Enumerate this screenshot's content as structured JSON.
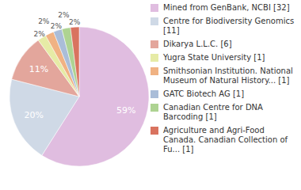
{
  "chart_data": {
    "type": "pie",
    "categories": [
      "Mined from GenBank, NCBI [32]",
      "Centre for Biodiversity Genomics [11]",
      "Dikarya L.L.C. [6]",
      "Yugra State University [1]",
      "Smithsonian Institution. National Museum of Natural History... [1]",
      "GATC Biotech AG [1]",
      "Canadian Centre for DNA Barcoding [1]",
      "Agriculture and Agri-Food Canada. Canadian Collection of Fu... [1]"
    ],
    "values": [
      59,
      20,
      11,
      2,
      2,
      2,
      2,
      2
    ],
    "value_labels": [
      "59%",
      "20%",
      "11%",
      "2%",
      "2%",
      "2%",
      "2%",
      "2%"
    ],
    "colors": [
      "#e0bde0",
      "#cfd9e6",
      "#e3a69c",
      "#e6eba6",
      "#f0b283",
      "#aabdd8",
      "#aed392",
      "#d9735f"
    ],
    "data_labels": true,
    "legend": "right"
  }
}
